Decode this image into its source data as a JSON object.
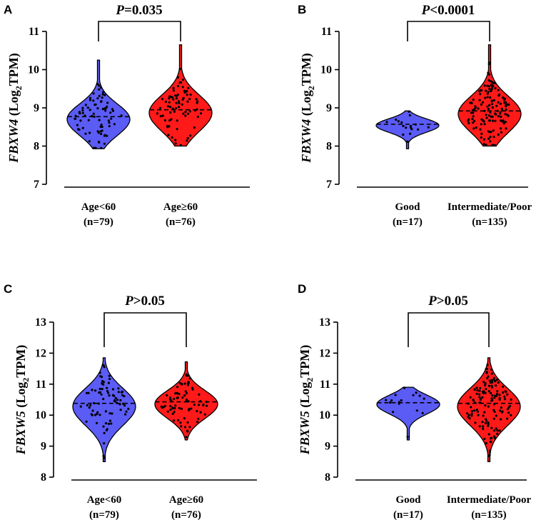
{
  "chart_data": [
    {
      "panel": "A",
      "type": "violin",
      "ylabel_gene": "FBXW4",
      "ylabel_log": "Log",
      "ylabel_sub": "2",
      "ylabel_unit": "TPM",
      "ylim": [
        7,
        11
      ],
      "yticks": [
        "7",
        "8",
        "9",
        "10",
        "11"
      ],
      "comparison": {
        "p_symbol": "P",
        "p_rest": "=0.035"
      },
      "groups": [
        {
          "name": "Age<60",
          "n_label": "(n=79)",
          "color": "#5b5bf5",
          "median": 8.77,
          "min": 7.93,
          "max": 10.25,
          "n": 79
        },
        {
          "name": "Age≥60",
          "n_label": "(n=76)",
          "color": "#ff1a1a",
          "median": 8.95,
          "min": 8.0,
          "max": 10.65,
          "n": 76
        }
      ]
    },
    {
      "panel": "B",
      "type": "violin",
      "ylabel_gene": "FBXW4",
      "ylabel_log": "Log",
      "ylabel_sub": "2",
      "ylabel_unit": "TPM",
      "ylim": [
        7,
        11
      ],
      "yticks": [
        "7",
        "8",
        "9",
        "10",
        "11"
      ],
      "comparison": {
        "p_symbol": "P",
        "p_rest": "<0.0001"
      },
      "groups": [
        {
          "name": "Good",
          "n_label": "(n=17)",
          "color": "#5b5bf5",
          "median": 8.57,
          "min": 7.93,
          "max": 8.92,
          "n": 17
        },
        {
          "name": "Intermediate/Poor",
          "n_label": "(n=135)",
          "color": "#ff1a1a",
          "median": 8.92,
          "min": 8.0,
          "max": 10.65,
          "n": 135
        }
      ]
    },
    {
      "panel": "C",
      "type": "violin",
      "ylabel_gene": "FBXW5",
      "ylabel_log": "Log",
      "ylabel_sub": "2",
      "ylabel_unit": "TPM",
      "ylim": [
        8,
        13
      ],
      "yticks": [
        "8",
        "9",
        "10",
        "11",
        "12",
        "13"
      ],
      "comparison": {
        "p_symbol": "P",
        "p_rest": ">0.05"
      },
      "groups": [
        {
          "name": "Age<60",
          "n_label": "(n=79)",
          "color": "#5b5bf5",
          "median": 10.38,
          "min": 8.5,
          "max": 11.85,
          "n": 79
        },
        {
          "name": "Age≥60",
          "n_label": "(n=76)",
          "color": "#ff1a1a",
          "median": 10.43,
          "min": 9.2,
          "max": 11.72,
          "n": 76
        }
      ]
    },
    {
      "panel": "D",
      "type": "violin",
      "ylabel_gene": "FBXW5",
      "ylabel_log": "Log",
      "ylabel_sub": "2",
      "ylabel_unit": "TPM",
      "ylim": [
        8,
        13
      ],
      "yticks": [
        "8",
        "9",
        "10",
        "11",
        "12",
        "13"
      ],
      "comparison": {
        "p_symbol": "P",
        "p_rest": ">0.05"
      },
      "groups": [
        {
          "name": "Good",
          "n_label": "(n=17)",
          "color": "#5b5bf5",
          "median": 10.4,
          "min": 9.2,
          "max": 10.9,
          "n": 17
        },
        {
          "name": "Intermediate/Poor",
          "n_label": "(n=135)",
          "color": "#ff1a1a",
          "median": 10.38,
          "min": 8.5,
          "max": 11.85,
          "n": 135
        }
      ]
    }
  ]
}
